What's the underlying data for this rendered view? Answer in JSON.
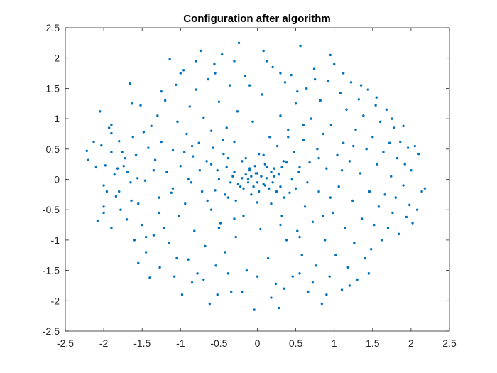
{
  "chart_data": {
    "type": "scatter",
    "title": "Configuration after algorithm",
    "xlabel": "",
    "ylabel": "",
    "xlim": [
      -2.5,
      2.5
    ],
    "ylim": [
      -2.5,
      2.5
    ],
    "xticks": [
      -2.5,
      -2,
      -1.5,
      -1,
      -0.5,
      0,
      0.5,
      1,
      1.5,
      2,
      2.5
    ],
    "yticks": [
      -2.5,
      -2,
      -1.5,
      -1,
      -0.5,
      0,
      0.5,
      1,
      1.5,
      2,
      2.5
    ],
    "xtick_labels": [
      "-2.5",
      "-2",
      "-1.5",
      "-1",
      "-0.5",
      "0",
      "0.5",
      "1",
      "1.5",
      "2",
      "2.5"
    ],
    "ytick_labels": [
      "-2.5",
      "-2",
      "-1.5",
      "-1",
      "-0.5",
      "0",
      "0.5",
      "1",
      "1.5",
      "2",
      "2.5"
    ],
    "grid": false,
    "box": true,
    "marker_color": "#0072BD",
    "series": [
      {
        "points": [
          [
            -2.22,
            0.47
          ],
          [
            -2.2,
            0.32
          ],
          [
            -2.13,
            0.62
          ],
          [
            -2.08,
            -0.68
          ],
          [
            -2.05,
            1.12
          ],
          [
            -2.03,
            0.56
          ],
          [
            -2.0,
            -0.55
          ],
          [
            -2.0,
            -0.45
          ],
          [
            -1.98,
            0.23
          ],
          [
            -1.96,
            -0.2
          ],
          [
            -1.93,
            0.85
          ],
          [
            -1.9,
            0.76
          ],
          [
            -1.9,
            0.9
          ],
          [
            -1.9,
            -0.8
          ],
          [
            -1.86,
            0.08
          ],
          [
            -1.84,
            -0.28
          ],
          [
            -1.82,
            0.18
          ],
          [
            -1.8,
            0.63
          ],
          [
            -1.78,
            -0.5
          ],
          [
            -1.76,
            0.45
          ],
          [
            -1.74,
            0.22
          ],
          [
            -1.7,
            -0.66
          ],
          [
            -1.69,
            0.12
          ],
          [
            -1.66,
            1.58
          ],
          [
            -1.64,
            -0.35
          ],
          [
            -1.63,
            1.25
          ],
          [
            -1.62,
            0.7
          ],
          [
            -1.6,
            -1.0
          ],
          [
            -1.58,
            0.4
          ],
          [
            -1.56,
            0.02
          ],
          [
            -1.55,
            -0.4
          ],
          [
            -1.52,
            1.22
          ],
          [
            -1.5,
            -0.75
          ],
          [
            -1.48,
            0.78
          ],
          [
            -1.46,
            -0.02
          ],
          [
            -1.45,
            -1.2
          ],
          [
            -1.42,
            0.52
          ],
          [
            -1.4,
            -1.62
          ],
          [
            -1.38,
            0.88
          ],
          [
            -1.35,
            -0.92
          ],
          [
            -1.33,
            0.32
          ],
          [
            -1.3,
            1.05
          ],
          [
            -1.28,
            -0.3
          ],
          [
            -1.27,
            -1.45
          ],
          [
            -1.25,
            0.62
          ],
          [
            -1.22,
            -0.8
          ],
          [
            -1.2,
            1.3
          ],
          [
            -1.18,
            0.12
          ],
          [
            -1.15,
            -1.05
          ],
          [
            -1.14,
            1.98
          ],
          [
            -1.12,
            -0.22
          ],
          [
            -1.1,
            0.48
          ],
          [
            -1.08,
            -1.6
          ],
          [
            -1.06,
            1.56
          ],
          [
            -1.04,
            0.95
          ],
          [
            -1.02,
            -0.6
          ],
          [
            -1.0,
            0.22
          ],
          [
            -0.98,
            -1.9
          ],
          [
            -0.96,
            1.8
          ],
          [
            -0.94,
            -0.4
          ],
          [
            -0.92,
            0.75
          ],
          [
            -0.9,
            -1.32
          ],
          [
            -0.88,
            1.2
          ],
          [
            -0.86,
            -0.05
          ],
          [
            -0.84,
            0.38
          ],
          [
            -0.82,
            -0.85
          ],
          [
            -0.8,
            1.48
          ],
          [
            -0.78,
            -1.55
          ],
          [
            -0.76,
            0.6
          ],
          [
            -0.74,
            2.12
          ],
          [
            -0.72,
            -0.2
          ],
          [
            -0.7,
            1.02
          ],
          [
            -0.68,
            -1.1
          ],
          [
            -0.66,
            0.3
          ],
          [
            -0.64,
            1.65
          ],
          [
            -0.62,
            -2.05
          ],
          [
            -0.6,
            -0.5
          ],
          [
            -0.58,
            0.52
          ],
          [
            -0.56,
            1.9
          ],
          [
            -0.54,
            -1.42
          ],
          [
            -0.52,
            0.15
          ],
          [
            -0.5,
            1.28
          ],
          [
            -0.48,
            -0.72
          ],
          [
            -0.46,
            2.06
          ],
          [
            -0.44,
            0.42
          ],
          [
            -0.42,
            -1.2
          ],
          [
            -0.4,
            0.85
          ],
          [
            -0.38,
            -0.3
          ],
          [
            -0.36,
            1.55
          ],
          [
            -0.34,
            -1.85
          ],
          [
            -0.32,
            0.05
          ],
          [
            -0.3,
            0.62
          ],
          [
            -0.28,
            -0.95
          ],
          [
            -0.26,
            1.12
          ],
          [
            -0.24,
            2.25
          ],
          [
            -0.22,
            -0.12
          ],
          [
            -0.2,
            0.3
          ],
          [
            -0.18,
            -0.6
          ],
          [
            -0.16,
            1.7
          ],
          [
            -0.14,
            -1.5
          ],
          [
            -0.12,
            0.0
          ],
          [
            -0.1,
            0.18
          ],
          [
            -0.08,
            -0.25
          ],
          [
            -0.06,
            0.95
          ],
          [
            -0.04,
            -2.15
          ],
          [
            -0.02,
            0.1
          ],
          [
            0.0,
            -0.05
          ],
          [
            0.02,
            0.42
          ],
          [
            0.04,
            -0.82
          ],
          [
            0.06,
            1.4
          ],
          [
            0.08,
            2.12
          ],
          [
            0.1,
            -0.1
          ],
          [
            0.12,
            0.2
          ],
          [
            0.14,
            -1.3
          ],
          [
            0.16,
            0.7
          ],
          [
            0.18,
            -0.4
          ],
          [
            0.2,
            1.85
          ],
          [
            0.22,
            0.05
          ],
          [
            0.24,
            -1.72
          ],
          [
            0.26,
            0.55
          ],
          [
            0.28,
            -2.12
          ],
          [
            0.3,
            1.05
          ],
          [
            0.32,
            -0.6
          ],
          [
            0.34,
            0.3
          ],
          [
            0.36,
            1.6
          ],
          [
            0.38,
            -1.0
          ],
          [
            0.4,
            0.82
          ],
          [
            0.42,
            -0.22
          ],
          [
            0.44,
            1.72
          ],
          [
            0.46,
            -1.6
          ],
          [
            0.48,
            0.45
          ],
          [
            0.5,
            1.25
          ],
          [
            0.52,
            -0.85
          ],
          [
            0.54,
            0.12
          ],
          [
            0.56,
            2.2
          ],
          [
            0.58,
            -1.25
          ],
          [
            0.6,
            0.65
          ],
          [
            0.62,
            -0.45
          ],
          [
            0.64,
            1.5
          ],
          [
            0.66,
            -1.85
          ],
          [
            0.68,
            0.28
          ],
          [
            0.7,
            1.0
          ],
          [
            0.72,
            -0.7
          ],
          [
            0.74,
            1.82
          ],
          [
            0.76,
            -1.42
          ],
          [
            0.78,
            0.5
          ],
          [
            0.8,
            -0.2
          ],
          [
            0.82,
            1.3
          ],
          [
            0.84,
            -2.05
          ],
          [
            0.86,
            0.75
          ],
          [
            0.88,
            -1.0
          ],
          [
            0.9,
            0.18
          ],
          [
            0.92,
            1.62
          ],
          [
            0.94,
            -1.6
          ],
          [
            0.96,
            0.9
          ],
          [
            0.98,
            -0.55
          ],
          [
            1.0,
            1.9
          ],
          [
            1.02,
            -1.25
          ],
          [
            1.04,
            0.4
          ],
          [
            1.06,
            -0.12
          ],
          [
            1.08,
            1.42
          ],
          [
            1.1,
            -1.82
          ],
          [
            1.12,
            0.6
          ],
          [
            1.14,
            -0.8
          ],
          [
            1.16,
            1.15
          ],
          [
            1.18,
            -1.45
          ],
          [
            1.2,
            0.3
          ],
          [
            1.22,
            1.6
          ],
          [
            1.24,
            -0.35
          ],
          [
            1.26,
            -1.05
          ],
          [
            1.28,
            0.82
          ],
          [
            1.3,
            -1.65
          ],
          [
            1.32,
            1.32
          ],
          [
            1.34,
            0.1
          ],
          [
            1.36,
            -0.65
          ],
          [
            1.38,
            1.05
          ],
          [
            1.4,
            -1.3
          ],
          [
            1.42,
            0.5
          ],
          [
            1.44,
            1.48
          ],
          [
            1.46,
            -0.2
          ],
          [
            1.48,
            -1.15
          ],
          [
            1.5,
            0.7
          ],
          [
            1.52,
            -0.75
          ],
          [
            1.54,
            1.22
          ],
          [
            1.56,
            0.25
          ],
          [
            1.58,
            -0.45
          ],
          [
            1.6,
            0.95
          ],
          [
            1.62,
            -1.0
          ],
          [
            1.64,
            0.45
          ],
          [
            1.66,
            -0.25
          ],
          [
            1.68,
            1.15
          ],
          [
            1.7,
            -0.8
          ],
          [
            1.72,
            0.6
          ],
          [
            1.74,
            0.05
          ],
          [
            1.76,
            -0.55
          ],
          [
            1.78,
            0.85
          ],
          [
            1.8,
            -0.3
          ],
          [
            1.82,
            0.35
          ],
          [
            1.84,
            -0.9
          ],
          [
            1.86,
            0.62
          ],
          [
            1.9,
            -0.1
          ],
          [
            1.92,
            0.25
          ],
          [
            1.94,
            -0.62
          ],
          [
            1.96,
            0.52
          ],
          [
            1.98,
            -0.42
          ],
          [
            2.0,
            0.15
          ],
          [
            2.02,
            -0.72
          ],
          [
            2.05,
            0.55
          ],
          [
            2.08,
            -0.5
          ],
          [
            2.1,
            0.42
          ],
          [
            2.14,
            -0.2
          ],
          [
            2.18,
            -0.15
          ],
          [
            -0.35,
            -0.05
          ],
          [
            -0.3,
            0.12
          ],
          [
            -0.25,
            -0.08
          ],
          [
            -0.2,
            0.02
          ],
          [
            -0.18,
            -0.15
          ],
          [
            -0.15,
            0.08
          ],
          [
            -0.12,
            -0.05
          ],
          [
            -0.1,
            0.15
          ],
          [
            -0.08,
            0.05
          ],
          [
            -0.05,
            -0.12
          ],
          [
            -0.03,
            0.22
          ],
          [
            0.0,
            0.1
          ],
          [
            0.02,
            -0.2
          ],
          [
            0.05,
            0.05
          ],
          [
            0.08,
            -0.08
          ],
          [
            0.1,
            0.25
          ],
          [
            0.12,
            0.02
          ],
          [
            0.15,
            -0.15
          ],
          [
            0.18,
            0.12
          ],
          [
            0.2,
            -0.05
          ],
          [
            0.22,
            0.18
          ],
          [
            0.25,
            -0.2
          ],
          [
            0.28,
            0.08
          ],
          [
            0.3,
            -0.12
          ],
          [
            0.32,
            0.2
          ],
          [
            -0.4,
            0.2
          ],
          [
            -0.42,
            -0.25
          ],
          [
            -0.38,
            0.35
          ],
          [
            0.35,
            -0.3
          ],
          [
            0.38,
            0.28
          ],
          [
            -0.5,
            0.0
          ],
          [
            -0.55,
            -0.18
          ],
          [
            -0.6,
            0.25
          ],
          [
            0.45,
            0.0
          ],
          [
            0.5,
            -0.15
          ],
          [
            0.55,
            0.2
          ],
          [
            -0.28,
            -0.35
          ],
          [
            0.0,
            -0.38
          ],
          [
            0.08,
            0.4
          ],
          [
            -0.15,
            0.35
          ],
          [
            -1.65,
            -0.05
          ],
          [
            -1.72,
            0.35
          ],
          [
            -1.28,
            -0.55
          ],
          [
            -1.35,
            0.15
          ],
          [
            -1.05,
            -1.3
          ],
          [
            -0.85,
            -1.7
          ],
          [
            -0.7,
            -1.65
          ],
          [
            -0.52,
            -1.9
          ],
          [
            -0.38,
            -1.55
          ],
          [
            -0.2,
            -1.85
          ],
          [
            0.0,
            -1.6
          ],
          [
            0.18,
            -1.95
          ],
          [
            0.35,
            -1.8
          ],
          [
            0.55,
            -1.55
          ],
          [
            0.72,
            -1.7
          ],
          [
            0.9,
            -1.9
          ],
          [
            1.2,
            -1.75
          ],
          [
            1.45,
            -1.55
          ],
          [
            -1.55,
            -1.38
          ],
          [
            -1.45,
            -0.95
          ],
          [
            -1.25,
            1.45
          ],
          [
            -1.0,
            1.75
          ],
          [
            -0.8,
            1.95
          ],
          [
            -0.55,
            1.75
          ],
          [
            -0.3,
            1.95
          ],
          [
            -0.1,
            1.55
          ],
          [
            0.12,
            1.95
          ],
          [
            0.3,
            1.75
          ],
          [
            0.52,
            1.45
          ],
          [
            0.75,
            1.65
          ],
          [
            0.95,
            2.05
          ],
          [
            1.12,
            1.75
          ],
          [
            1.35,
            1.55
          ],
          [
            1.55,
            1.35
          ],
          [
            1.75,
            1.0
          ],
          [
            1.9,
            0.88
          ],
          [
            -1.9,
            0.45
          ],
          [
            -2.1,
            0.2
          ],
          [
            -1.8,
            -0.2
          ],
          [
            -2.0,
            -0.1
          ],
          [
            -0.9,
            0.0
          ],
          [
            -0.75,
            0.15
          ],
          [
            -0.65,
            -0.35
          ],
          [
            -0.95,
            0.45
          ],
          [
            -1.1,
            -0.15
          ],
          [
            0.65,
            -0.05
          ],
          [
            0.8,
            0.35
          ],
          [
            0.95,
            -0.3
          ],
          [
            1.1,
            0.15
          ],
          [
            1.25,
            0.55
          ],
          [
            -0.6,
            0.8
          ],
          [
            -0.45,
            0.65
          ],
          [
            0.4,
            0.7
          ],
          [
            0.6,
            0.9
          ],
          [
            -0.5,
            -0.8
          ],
          [
            -0.3,
            -0.65
          ],
          [
            0.3,
            -0.75
          ],
          [
            0.55,
            -0.95
          ],
          [
            -0.85,
            0.55
          ],
          [
            0.85,
            -0.6
          ]
        ]
      }
    ]
  }
}
